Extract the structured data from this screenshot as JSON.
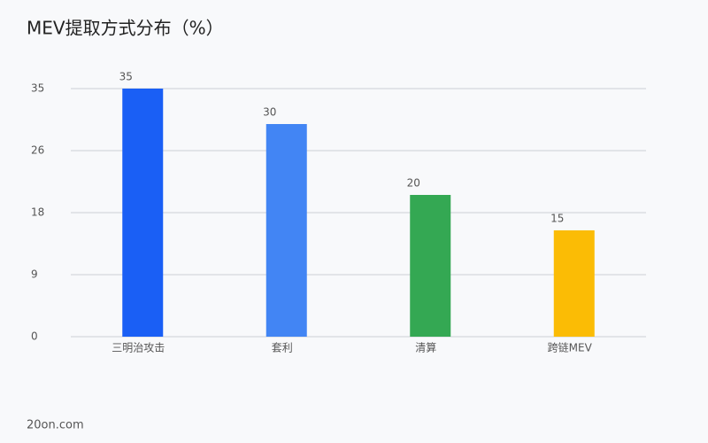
{
  "chart_data": {
    "type": "bar",
    "title": "MEV提取方式分布（%）",
    "categories": [
      "三明治攻击",
      "套利",
      "清算",
      "跨链MEV"
    ],
    "values": [
      35,
      30,
      20,
      15
    ],
    "colors": [
      "#1a5ff5",
      "#4285f4",
      "#34a853",
      "#fbbc05"
    ],
    "ylim": [
      0,
      35
    ],
    "yticks": [
      0,
      {
        "value": 8.75,
        "label": "9"
      },
      {
        "value": 17.5,
        "label": "18"
      },
      {
        "value": 26.25,
        "label": "26"
      },
      35
    ],
    "grid": true,
    "source": "20on.com"
  }
}
